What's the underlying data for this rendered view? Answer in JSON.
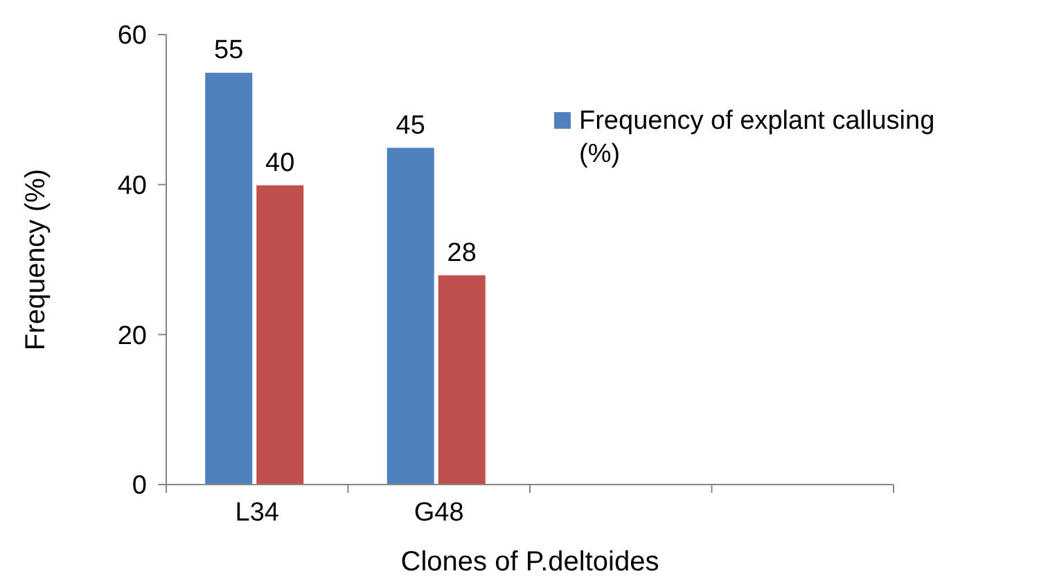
{
  "chart_data": {
    "type": "bar",
    "xlabel": "Clones of P.deltoides",
    "ylabel": "Frequency   (%)",
    "categories": [
      "L34",
      "G48",
      null,
      null
    ],
    "series": [
      {
        "name": "Frequency of explant callusing (%)",
        "color": "#4f81bd",
        "values": [
          55,
          45,
          null,
          null
        ]
      },
      {
        "color": "#c0504d",
        "values": [
          40,
          28,
          null,
          null
        ]
      }
    ],
    "ylim": [
      0,
      60
    ],
    "yticks": [
      0,
      20,
      40,
      60
    ],
    "data_labels": true,
    "legend": "top right",
    "grid": false
  }
}
